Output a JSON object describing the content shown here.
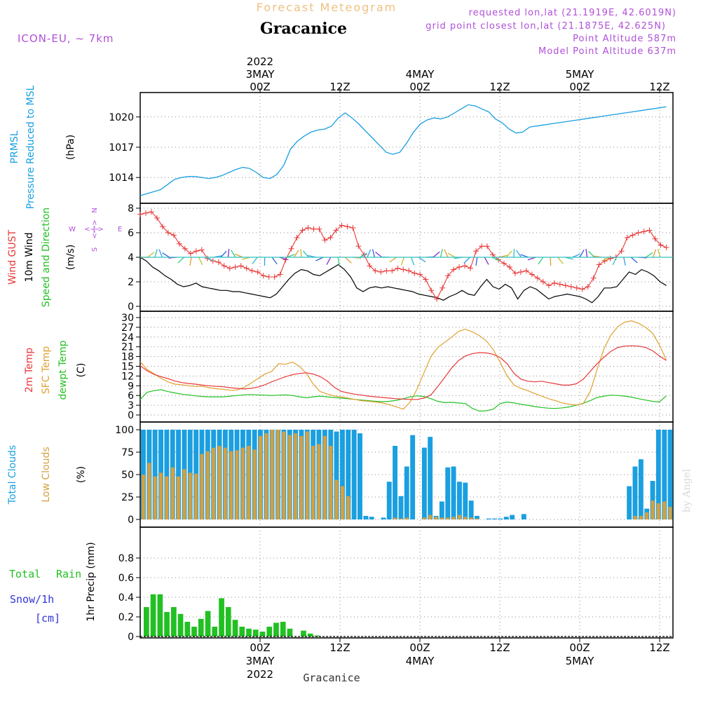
{
  "header": {
    "top_title": "Forecast Meteogram",
    "station": "Gracanice",
    "model": "ICON-EU, ~ 7km",
    "requested": "requested lon,lat (21.1919E, 42.6019N)",
    "gridpoint": "grid point closest lon,lat (21.1875E, 42.625N)",
    "point_alt": "Point Altitude 587m",
    "model_alt": "Model Point Altitude 637m",
    "footer_station": "Gracanice",
    "watermark": "by Angel"
  },
  "colors": {
    "pressure": "#1a9fe0",
    "gust": "#e83838",
    "wind": "#000000",
    "temp2m": "#e83838",
    "sfc": "#e0a030",
    "dewpt": "#22c022",
    "total_clouds": "#1a9fe0",
    "low_clouds": "#d4a040",
    "rain": "#22c022",
    "snow": "#3333dd",
    "title_orange": "#f0c080",
    "meta_purple": "#a040d0"
  },
  "time_axis": {
    "hours_total": 78,
    "ticks": [
      {
        "hour": 18,
        "z": "00Z",
        "top": [
          "2022",
          "3MAY"
        ],
        "bottom": [
          "3MAY",
          "2022"
        ]
      },
      {
        "hour": 30,
        "z": "12Z",
        "top": [],
        "bottom": []
      },
      {
        "hour": 42,
        "z": "00Z",
        "top": [
          "4MAY"
        ],
        "bottom": [
          "4MAY"
        ]
      },
      {
        "hour": 54,
        "z": "12Z",
        "top": [],
        "bottom": []
      },
      {
        "hour": 66,
        "z": "00Z",
        "top": [
          "5MAY"
        ],
        "bottom": [
          "5MAY"
        ]
      },
      {
        "hour": 78,
        "z": "12Z",
        "top": [],
        "bottom": []
      }
    ]
  },
  "labels": {
    "pressure": [
      "PRMSL",
      "Pressure Reduced to MSL"
    ],
    "pressure_unit": "(hPa)",
    "wind": [
      "Wind GUST",
      "10m Wind",
      "Speed and Direction"
    ],
    "wind_unit": "(m/s)",
    "compass": {
      "w": "W",
      "e": "E",
      "n": "N",
      "s": "S",
      "arrow": "<-|->"
    },
    "temp": [
      "2m Temp",
      "SFC Temp",
      "dewpt Temp"
    ],
    "temp_unit": "(C)",
    "clouds": [
      "Total Clouds",
      "Low Clouds"
    ],
    "clouds_unit": "(%)",
    "precip_left": [
      "Total",
      "Rain",
      "Snow/1h",
      "[cm]"
    ],
    "precip_axis": "1hr Precip (mm)"
  },
  "chart_data": [
    {
      "type": "line",
      "name": "pressure",
      "title": "PRMSL Pressure Reduced to MSL",
      "ylabel": "(hPa)",
      "ylim": [
        1012,
        1022
      ],
      "yticks": [
        1014,
        1017,
        1020
      ],
      "series": [
        {
          "name": "PRMSL",
          "x": [
            0,
            2,
            4,
            6,
            8,
            10,
            12,
            14,
            16,
            18,
            20,
            22,
            24,
            26,
            28,
            30,
            32,
            34,
            36,
            38,
            40,
            42,
            44,
            46,
            48,
            50,
            52,
            54,
            56,
            58,
            60,
            62,
            64,
            66,
            68,
            70,
            72,
            74,
            76,
            78,
            80,
            82,
            84,
            86,
            88,
            90,
            92,
            94,
            96,
            98,
            100,
            102,
            104,
            106,
            108,
            110,
            112,
            114,
            116,
            118,
            120,
            122,
            124,
            126,
            128,
            130,
            132,
            134,
            136,
            138,
            140,
            142,
            144,
            146,
            148,
            150,
            152,
            154
          ],
          "values": [
            1012.2,
            1012.4,
            1012.6,
            1012.8,
            1013.3,
            1013.8,
            1014.0,
            1014.1,
            1014.1,
            1014.0,
            1013.9,
            1014.0,
            1014.2,
            1014.5,
            1014.8,
            1015.0,
            1014.9,
            1014.5,
            1014.0,
            1013.9,
            1014.3,
            1015.2,
            1016.8,
            1017.6,
            1018.1,
            1018.5,
            1018.7,
            1018.8,
            1019.1,
            1019.9,
            1020.4,
            1019.9,
            1019.3,
            1018.6,
            1017.9,
            1017.2,
            1016.5,
            1016.3,
            1016.5,
            1017.4,
            1018.5,
            1019.3,
            1019.7,
            1019.9,
            1019.8,
            1020.0,
            1020.4,
            1020.8,
            1021.2,
            1021.1,
            1020.8,
            1020.5,
            1019.8,
            1019.4,
            1018.8,
            1018.4,
            1018.5,
            1019.0,
            1019.1,
            1019.2,
            1019.3,
            1019.4,
            1019.5,
            1019.6,
            1019.7,
            1019.8,
            1019.9,
            1020.0,
            1020.1,
            1020.2,
            1020.3,
            1020.4,
            1020.5,
            1020.6,
            1020.7,
            1020.8,
            1020.9,
            1021.0
          ]
        }
      ]
    },
    {
      "type": "line",
      "name": "wind",
      "title": "Wind GUST / 10m Wind Speed and Direction",
      "ylabel": "(m/s)",
      "ylim": [
        0,
        8
      ],
      "yticks": [
        0,
        2,
        4,
        6,
        8
      ],
      "series": [
        {
          "name": "Wind GUST",
          "values": [
            7.5,
            7.6,
            7.7,
            7.2,
            6.5,
            6.0,
            5.8,
            5.1,
            4.7,
            4.3,
            4.5,
            4.6,
            3.9,
            3.7,
            3.6,
            3.3,
            3.1,
            3.2,
            3.3,
            3.1,
            2.9,
            2.8,
            2.5,
            2.4,
            2.4,
            2.6,
            3.8,
            4.7,
            5.6,
            6.2,
            6.4,
            6.3,
            6.3,
            5.4,
            5.6,
            6.2,
            6.6,
            6.5,
            6.4,
            4.9,
            4.2,
            3.3,
            2.9,
            2.8,
            2.9,
            2.9,
            3.1,
            3.0,
            2.9,
            2.7,
            2.6,
            2.2,
            1.3,
            0.6,
            1.5,
            2.5,
            3.0,
            3.2,
            3.3,
            3.1,
            4.5,
            4.9,
            4.9,
            4.2,
            3.8,
            3.5,
            3.2,
            2.7,
            2.8,
            2.9,
            2.6,
            2.3,
            2.0,
            1.7,
            1.9,
            1.8,
            1.7,
            1.6,
            1.5,
            1.4,
            1.6,
            2.3,
            3.4,
            3.7,
            3.9,
            4.0,
            4.5,
            5.6,
            5.8,
            6.0,
            6.1,
            6.2,
            5.5,
            5.0,
            4.8
          ]
        },
        {
          "name": "10m Wind",
          "values": [
            4.0,
            3.7,
            3.2,
            2.9,
            2.5,
            2.2,
            1.8,
            1.6,
            1.7,
            1.9,
            1.6,
            1.5,
            1.4,
            1.3,
            1.3,
            1.2,
            1.2,
            1.1,
            1.0,
            0.9,
            0.8,
            0.7,
            1.0,
            1.6,
            2.2,
            2.7,
            3.0,
            2.9,
            2.6,
            2.5,
            2.8,
            3.1,
            3.4,
            3.0,
            2.4,
            1.5,
            1.2,
            1.5,
            1.6,
            1.5,
            1.6,
            1.5,
            1.4,
            1.3,
            1.2,
            1.0,
            0.9,
            0.8,
            0.7,
            0.5,
            0.8,
            1.0,
            1.3,
            1.0,
            0.9,
            1.6,
            2.2,
            1.6,
            1.4,
            1.8,
            1.5,
            0.6,
            1.3,
            1.6,
            1.4,
            1.0,
            0.6,
            0.8,
            0.9,
            1.0,
            0.9,
            0.8,
            0.6,
            0.3,
            0.8,
            1.5,
            1.5,
            1.6,
            2.2,
            2.8,
            2.6,
            3.0,
            2.8,
            2.5,
            2.0,
            1.7
          ]
        }
      ]
    },
    {
      "type": "line",
      "name": "temperature",
      "title": "2m Temp / SFC Temp / dewpt Temp",
      "ylabel": "(C)",
      "ylim": [
        0,
        30
      ],
      "yticks": [
        0,
        3,
        6,
        9,
        12,
        15,
        18,
        21,
        24,
        27,
        30
      ],
      "series": [
        {
          "name": "2m Temp",
          "values": [
            15.2,
            13.6,
            12.5,
            11.8,
            11.2,
            10.5,
            10.0,
            9.7,
            9.5,
            9.2,
            9.0,
            8.8,
            8.7,
            8.4,
            8.2,
            8.0,
            8.2,
            8.6,
            9.3,
            10.2,
            11.0,
            11.8,
            12.4,
            12.8,
            13.0,
            12.6,
            11.8,
            10.5,
            8.6,
            7.3,
            6.8,
            6.4,
            6.1,
            5.8,
            5.6,
            5.4,
            5.2,
            5.0,
            4.9,
            4.8,
            4.8,
            5.2,
            6.2,
            8.8,
            11.6,
            14.5,
            16.8,
            18.2,
            18.9,
            19.2,
            19.1,
            18.7,
            17.7,
            15.8,
            12.8,
            11.0,
            10.4,
            10.2,
            10.4,
            10.0,
            9.6,
            9.2,
            9.2,
            9.6,
            11.0,
            13.4,
            15.8,
            17.8,
            19.6,
            20.8,
            21.2,
            21.3,
            21.2,
            20.8,
            19.8,
            18.2,
            16.8
          ]
        },
        {
          "name": "SFC Temp",
          "values": [
            16.4,
            14.0,
            12.7,
            11.3,
            10.2,
            9.5,
            9.3,
            9.0,
            8.8,
            8.8,
            8.4,
            8.1,
            7.9,
            7.6,
            7.7,
            8.5,
            9.8,
            11.2,
            12.6,
            13.4,
            15.8,
            15.6,
            16.3,
            15.0,
            12.8,
            9.5,
            7.2,
            6.5,
            5.9,
            5.6,
            5.2,
            4.8,
            4.4,
            4.2,
            4.0,
            3.7,
            3.2,
            2.5,
            1.8,
            4.0,
            8.0,
            13.0,
            18.0,
            20.8,
            22.4,
            24.0,
            25.8,
            26.4,
            25.6,
            24.4,
            22.8,
            20.2,
            16.2,
            12.0,
            9.2,
            8.2,
            7.5,
            6.6,
            5.8,
            5.0,
            4.4,
            3.7,
            3.3,
            3.1,
            3.5,
            7.2,
            14.0,
            20.4,
            24.6,
            27.2,
            28.6,
            29.0,
            28.2,
            27.0,
            25.2,
            21.6,
            17.0
          ]
        },
        {
          "name": "dewpt Temp",
          "values": [
            4.8,
            7.0,
            7.5,
            7.8,
            7.2,
            6.8,
            6.4,
            6.2,
            5.9,
            5.7,
            5.6,
            5.6,
            5.6,
            5.8,
            6.0,
            6.2,
            6.3,
            6.2,
            6.1,
            6.0,
            6.1,
            6.2,
            6.0,
            5.6,
            5.3,
            5.6,
            5.8,
            5.6,
            5.4,
            5.2,
            5.0,
            4.8,
            4.6,
            4.4,
            4.2,
            4.1,
            4.2,
            4.5,
            5.0,
            5.6,
            5.9,
            5.7,
            5.0,
            4.2,
            3.8,
            3.9,
            3.7,
            3.5,
            2.0,
            1.2,
            1.3,
            1.8,
            3.5,
            4.0,
            3.7,
            3.3,
            3.0,
            2.6,
            2.3,
            2.1,
            2.0,
            2.2,
            2.5,
            3.0,
            3.6,
            4.4,
            5.4,
            5.8,
            6.1,
            6.0,
            5.8,
            5.5,
            5.0,
            4.6,
            4.2,
            4.0,
            5.9
          ]
        }
      ]
    },
    {
      "type": "bar",
      "name": "clouds",
      "title": "Total Clouds / Low Clouds",
      "ylabel": "(%)",
      "ylim": [
        0,
        100
      ],
      "yticks": [
        0,
        25,
        50,
        75,
        100
      ],
      "series": [
        {
          "name": "Total Clouds",
          "values": [
            100,
            100,
            100,
            100,
            100,
            100,
            100,
            100,
            100,
            100,
            100,
            100,
            100,
            100,
            100,
            100,
            100,
            100,
            100,
            100,
            100,
            100,
            100,
            100,
            100,
            100,
            100,
            100,
            100,
            100,
            100,
            100,
            100,
            98,
            100,
            100,
            100,
            96,
            4,
            3,
            0,
            2,
            42,
            82,
            26,
            59,
            94,
            0,
            80,
            92,
            4,
            20,
            58,
            59,
            42,
            41,
            21,
            4,
            0,
            1,
            1,
            1,
            3,
            5,
            0,
            6,
            0,
            0,
            0,
            0,
            0,
            0,
            0,
            0,
            0,
            0,
            0,
            0,
            0,
            0,
            0,
            0,
            0,
            37,
            59,
            67,
            12,
            43,
            100,
            100,
            100
          ]
        },
        {
          "name": "Low Clouds",
          "values": [
            50,
            63,
            48,
            52,
            48,
            58,
            48,
            56,
            52,
            51,
            73,
            76,
            80,
            82,
            80,
            76,
            77,
            80,
            82,
            78,
            93,
            96,
            100,
            100,
            98,
            94,
            96,
            93,
            98,
            82,
            84,
            93,
            82,
            44,
            37,
            26,
            0,
            0,
            0,
            0,
            0,
            0,
            0,
            2,
            1,
            2,
            0,
            0,
            2,
            5,
            3,
            2,
            2,
            3,
            5,
            3,
            2,
            1,
            0,
            0,
            0,
            0,
            0,
            0,
            0,
            0,
            0,
            0,
            0,
            0,
            0,
            0,
            0,
            0,
            0,
            0,
            0,
            0,
            0,
            0,
            0,
            0,
            0,
            0,
            4,
            4,
            8,
            21,
            18,
            20,
            14
          ]
        }
      ]
    },
    {
      "type": "bar",
      "name": "precipitation",
      "title": "1hr Precip (mm)",
      "ylabel": "1hr Precip (mm)",
      "ylim": [
        0,
        1
      ],
      "yticks": [
        0,
        0.2,
        0.4,
        0.6,
        0.8
      ],
      "series": [
        {
          "name": "Total Rain",
          "values": [
            0.3,
            0.43,
            0.43,
            0.25,
            0.3,
            0.23,
            0.15,
            0.1,
            0.18,
            0.26,
            0.1,
            0.39,
            0.3,
            0.17,
            0.1,
            0.08,
            0.07,
            0.05,
            0.1,
            0.14,
            0.15,
            0.08,
            0.0,
            0.06,
            0.03,
            0.01,
            0.0,
            0,
            0,
            0,
            0,
            0,
            0,
            0,
            0,
            0,
            0,
            0,
            0,
            0,
            0,
            0,
            0,
            0,
            0,
            0,
            0,
            0,
            0,
            0,
            0,
            0,
            0,
            0,
            0,
            0,
            0,
            0,
            0,
            0,
            0,
            0,
            0,
            0,
            0,
            0,
            0,
            0,
            0,
            0,
            0,
            0,
            0,
            0,
            0,
            0,
            0
          ]
        }
      ]
    }
  ]
}
